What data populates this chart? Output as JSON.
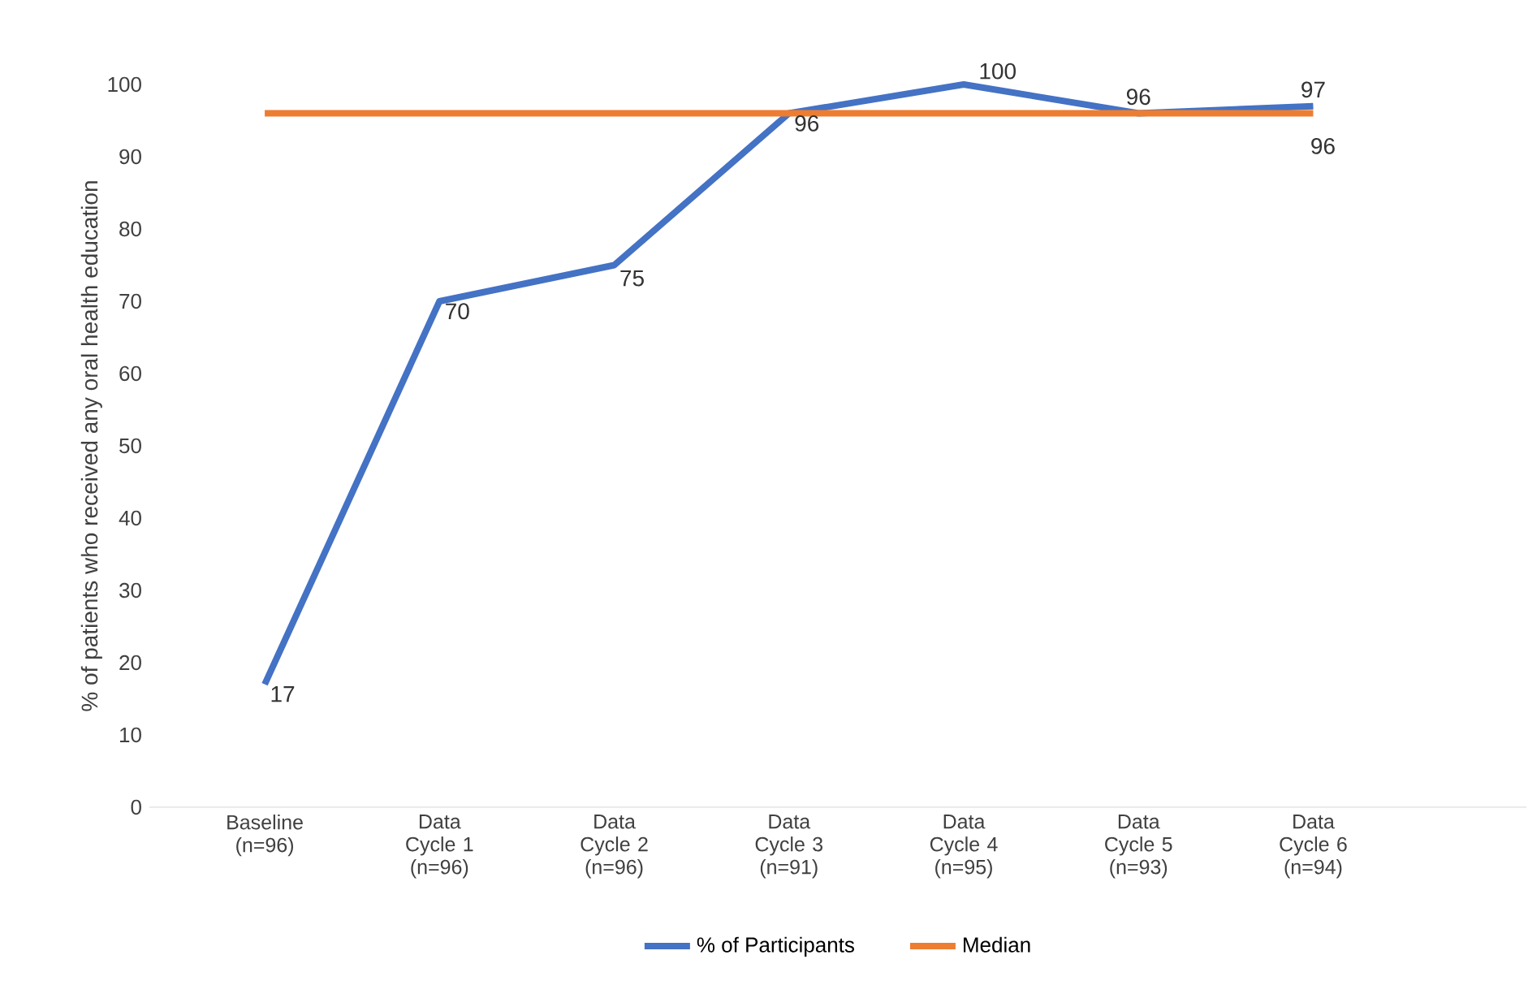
{
  "chart_data": {
    "type": "line",
    "ylabel": "% of patients who received any oral health education",
    "categories": [
      "Baseline (n=96)",
      "Data Cycle 1 (n=96)",
      "Data Cycle 2 (n=96)",
      "Data Cycle 3 (n=91)",
      "Data Cycle 4 (n=95)",
      "Data Cycle 5 (n=93)",
      "Data Cycle 6 (n=94)"
    ],
    "series": [
      {
        "name": "% of Participants",
        "color": "#4472c4",
        "values": [
          17,
          70,
          75,
          96,
          100,
          96,
          97
        ],
        "value_labels": [
          "17",
          "70",
          "75",
          "96",
          "100",
          "96",
          "97"
        ]
      },
      {
        "name": "Median",
        "color": "#ed7d31",
        "values": [
          96,
          96,
          96,
          96,
          96,
          96,
          96
        ],
        "value_labels": [
          null,
          null,
          null,
          null,
          null,
          null,
          "96"
        ]
      }
    ],
    "ylim": [
      0,
      100
    ],
    "yticks": [
      0,
      10,
      20,
      30,
      40,
      50,
      60,
      70,
      80,
      90,
      100
    ],
    "grid": false,
    "legend": "bottom",
    "marker": "none",
    "line_style": "solid"
  }
}
